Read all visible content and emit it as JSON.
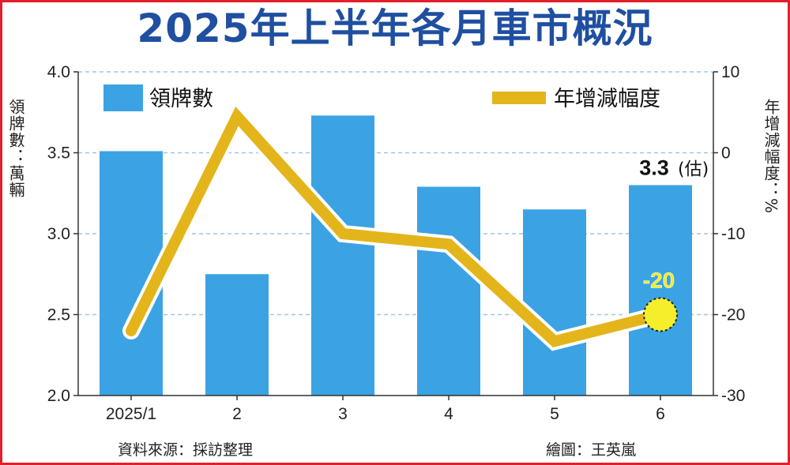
{
  "chart_data": {
    "type": "bar+line",
    "title": "2025年上半年各月車市概況",
    "categories": [
      "2025/1",
      "2",
      "3",
      "4",
      "5",
      "6"
    ],
    "series": [
      {
        "name": "領牌數",
        "type": "bar",
        "axis": "left",
        "color": "#3ba3e3",
        "values": [
          3.51,
          2.75,
          3.73,
          3.29,
          3.15,
          3.3
        ]
      },
      {
        "name": "年增減幅度",
        "type": "line",
        "axis": "right",
        "color": "#e3b51b",
        "values": [
          -22,
          4.5,
          -10,
          -11.3,
          -23.3,
          -20
        ]
      }
    ],
    "left_axis": {
      "label": "領牌數：萬輛",
      "range": [
        2.0,
        4.0
      ],
      "ticks": [
        "2.0",
        "2.5",
        "3.0",
        "3.5",
        "4.0"
      ]
    },
    "right_axis": {
      "label": "年增減幅度：%",
      "range": [
        -30,
        10
      ],
      "ticks": [
        "-30",
        "-20",
        "-10",
        "0",
        "10"
      ]
    },
    "annotations": {
      "bar_value": "3.3",
      "bar_note": "(估)",
      "line_value": "-20"
    },
    "legend": "top",
    "grid": true
  },
  "footer": {
    "source": "資料來源：採訪整理",
    "credit": "繪圖：王英嵐"
  }
}
